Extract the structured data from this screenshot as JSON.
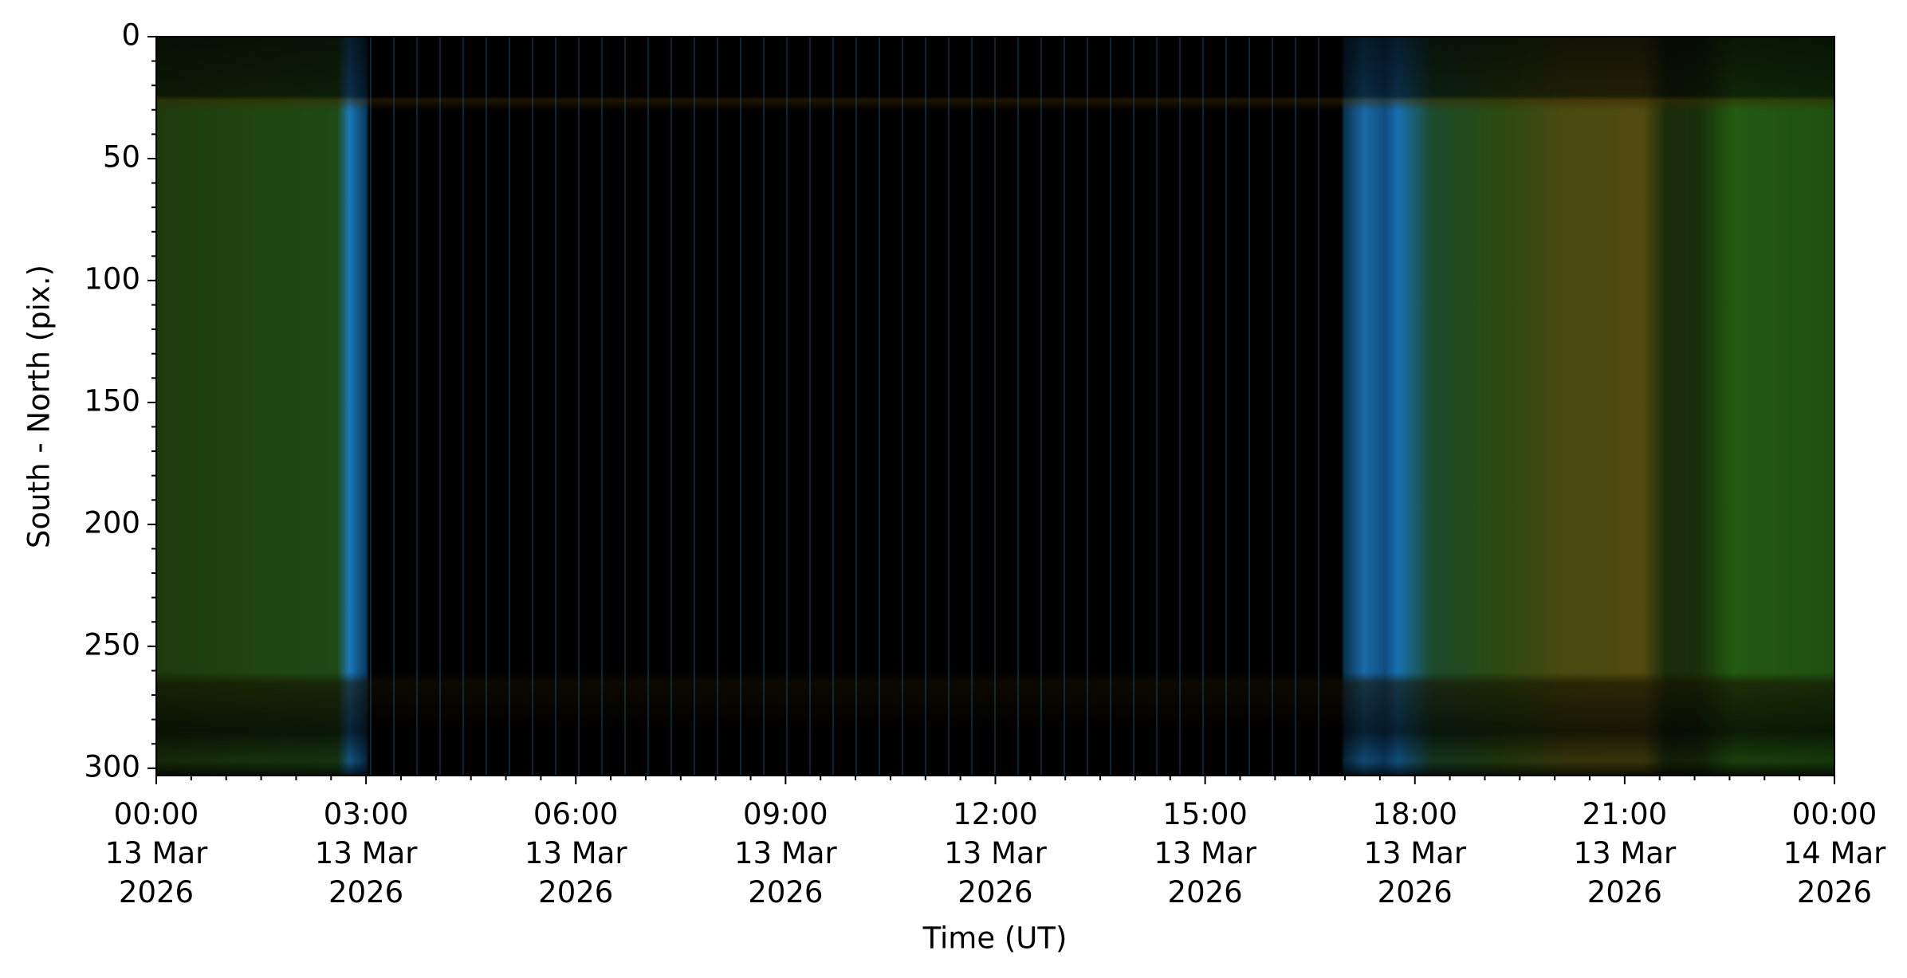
{
  "chart_data": {
    "type": "image",
    "x_label": "Time (UT)",
    "y_label": "South - North (pix.)",
    "xlim": [
      "2026-03-13T00:00",
      "2026-03-14T00:00"
    ],
    "xticks": [
      {
        "value": "2026-03-13T00:00",
        "label": "00:00\n13 Mar\n2026"
      },
      {
        "value": "2026-03-13T03:00",
        "label": "03:00\n13 Mar\n2026"
      },
      {
        "value": "2026-03-13T06:00",
        "label": "06:00\n13 Mar\n2026"
      },
      {
        "value": "2026-03-13T09:00",
        "label": "09:00\n13 Mar\n2026"
      },
      {
        "value": "2026-03-13T12:00",
        "label": "12:00\n13 Mar\n2026"
      },
      {
        "value": "2026-03-13T15:00",
        "label": "15:00\n13 Mar\n2026"
      },
      {
        "value": "2026-03-13T18:00",
        "label": "18:00\n13 Mar\n2026"
      },
      {
        "value": "2026-03-13T21:00",
        "label": "21:00\n13 Mar\n2026"
      },
      {
        "value": "2026-03-14T00:00",
        "label": "00:00\n14 Mar\n2026"
      }
    ],
    "xminorticks": [
      "2026-03-13T00:30",
      "2026-03-13T01:00",
      "2026-03-13T01:30",
      "2026-03-13T02:00",
      "2026-03-13T02:30",
      "2026-03-13T03:30",
      "2026-03-13T04:00",
      "2026-03-13T04:30",
      "2026-03-13T05:00",
      "2026-03-13T05:30",
      "2026-03-13T06:30",
      "2026-03-13T07:00",
      "2026-03-13T07:30",
      "2026-03-13T08:00",
      "2026-03-13T08:30",
      "2026-03-13T09:30",
      "2026-03-13T10:00",
      "2026-03-13T10:30",
      "2026-03-13T11:00",
      "2026-03-13T11:30",
      "2026-03-13T12:30",
      "2026-03-13T13:00",
      "2026-03-13T13:30",
      "2026-03-13T14:00",
      "2026-03-13T14:30",
      "2026-03-13T15:30",
      "2026-03-13T16:00",
      "2026-03-13T16:30",
      "2026-03-13T17:00",
      "2026-03-13T17:30",
      "2026-03-13T18:30",
      "2026-03-13T19:00",
      "2026-03-13T19:30",
      "2026-03-13T20:00",
      "2026-03-13T20:30",
      "2026-03-13T21:30",
      "2026-03-13T22:00",
      "2026-03-13T22:30",
      "2026-03-13T23:00",
      "2026-03-13T23:30"
    ],
    "ylim": [
      303,
      0
    ],
    "yticks": [
      0,
      50,
      100,
      150,
      200,
      250,
      300
    ],
    "yminorticks": [
      10,
      20,
      30,
      40,
      60,
      70,
      80,
      90,
      110,
      120,
      130,
      140,
      160,
      170,
      180,
      190,
      210,
      220,
      230,
      240,
      260,
      270,
      280,
      290
    ]
  }
}
